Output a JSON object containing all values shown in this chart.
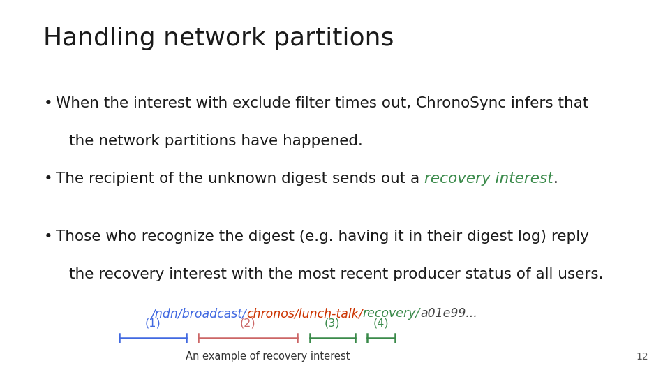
{
  "title": "Handling network partitions",
  "background_color": "#ffffff",
  "title_fontsize": 26,
  "title_color": "#1a1a1a",
  "bullet_fontsize": 15.5,
  "bullet_color": "#1a1a1a",
  "url_fontsize": 12.5,
  "caption_fontsize": 10.5,
  "page_number": "12",
  "seg_color1": "#4169e1",
  "seg_color2": "#cc6666",
  "seg_color3": "#3a8a4a",
  "url_parts": [
    {
      "text": "/ndn/broadcast/",
      "color": "#4169e1"
    },
    {
      "text": "chronos/lunch-talk/",
      "color": "#cc3300"
    },
    {
      "text": "recovery/",
      "color": "#3a8a4a"
    },
    {
      "text": "a01e99...",
      "color": "#444444"
    }
  ],
  "caption": "An example of recovery interest"
}
